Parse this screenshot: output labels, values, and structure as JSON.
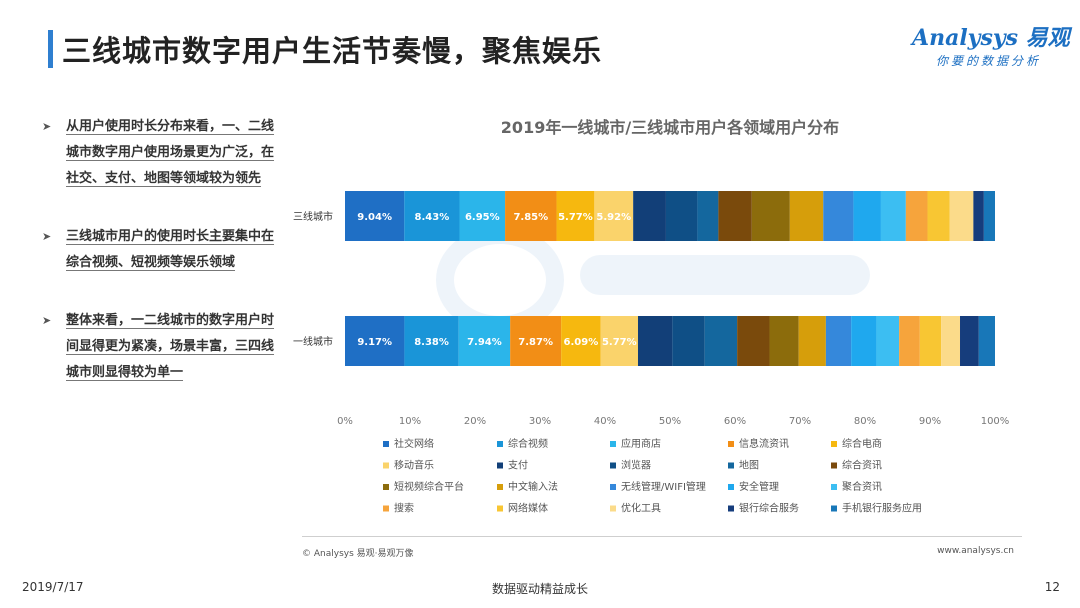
{
  "header": {
    "title": "三线城市数字用户生活节奏慢，聚焦娱乐"
  },
  "logo": {
    "brand": "Analysys 易观",
    "tagline": "你要的数据分析"
  },
  "bullets": [
    "从用户使用时长分布来看，一、二线城市数字用户使用场景更为广泛，在社交、支付、地图等领域较为领先",
    "三线城市用户的使用时长主要集中在综合视频、短视频等娱乐领域",
    "整体来看，一二线城市的数字用户时间显得更为紧凑，场景丰富，三四线城市则显得较为单一"
  ],
  "chart_data": {
    "type": "bar",
    "orientation": "horizontal",
    "stacked": "percent",
    "title": "2019年一线城市/三线城市用户各领域用户分布",
    "categories": [
      "三线城市",
      "一线城市"
    ],
    "xlim": [
      0,
      100
    ],
    "xticks": [
      "0%",
      "10%",
      "20%",
      "30%",
      "40%",
      "50%",
      "60%",
      "70%",
      "80%",
      "90%",
      "100%"
    ],
    "legend_position": "bottom",
    "series": [
      {
        "name": "社交网络",
        "color": "#1f6fc5",
        "values": [
          9.04,
          9.17
        ],
        "labels": [
          "9.04%",
          "9.17%"
        ]
      },
      {
        "name": "综合视频",
        "color": "#1a95d8",
        "values": [
          8.43,
          8.38
        ],
        "labels": [
          "8.43%",
          "8.38%"
        ]
      },
      {
        "name": "应用商店",
        "color": "#2bb5ea",
        "values": [
          6.95,
          7.94
        ],
        "labels": [
          "6.95%",
          "7.94%"
        ]
      },
      {
        "name": "信息流资讯",
        "color": "#f28e16",
        "values": [
          7.85,
          7.87
        ],
        "labels": [
          "7.85%",
          "7.87%"
        ]
      },
      {
        "name": "综合电商",
        "color": "#f6b80f",
        "values": [
          5.77,
          6.09
        ],
        "labels": [
          "5.77%",
          "6.09%"
        ]
      },
      {
        "name": "移动音乐",
        "color": "#fad36b",
        "values": [
          5.92,
          5.77
        ],
        "labels": [
          "5.92%",
          "5.77%"
        ]
      },
      {
        "name": "支付",
        "color": "#123f78",
        "values": [
          5.0,
          5.3
        ]
      },
      {
        "name": "浏览器",
        "color": "#0f4f86",
        "values": [
          4.8,
          5.0
        ]
      },
      {
        "name": "地图",
        "color": "#14679e",
        "values": [
          3.2,
          5.0
        ]
      },
      {
        "name": "综合资讯",
        "color": "#7a4a0c",
        "values": [
          5.1,
          5.0
        ]
      },
      {
        "name": "短视频综合平台",
        "color": "#8c6c0c",
        "values": [
          5.8,
          4.5
        ]
      },
      {
        "name": "中文输入法",
        "color": "#d69e0b",
        "values": [
          5.1,
          4.2
        ]
      },
      {
        "name": "无线管理/WIFI管理",
        "color": "#3588db",
        "values": [
          4.6,
          3.9
        ]
      },
      {
        "name": "安全管理",
        "color": "#1fa8ee",
        "values": [
          4.2,
          3.9
        ]
      },
      {
        "name": "聚合资讯",
        "color": "#3cbef2",
        "values": [
          3.8,
          3.5
        ]
      },
      {
        "name": "搜索",
        "color": "#f6a43c",
        "values": [
          3.3,
          3.2
        ]
      },
      {
        "name": "网络媒体",
        "color": "#f8c633",
        "values": [
          3.4,
          3.3
        ]
      },
      {
        "name": "优化工具",
        "color": "#fbdb8a",
        "values": [
          3.6,
          2.9
        ]
      },
      {
        "name": "银行综合服务",
        "color": "#163d7c",
        "values": [
          1.6,
          2.9
        ]
      },
      {
        "name": "手机银行服务应用",
        "color": "#1877b8",
        "values": [
          1.7,
          2.5
        ]
      }
    ]
  },
  "footer": {
    "copyright": "© Analysys 易观·易观万像",
    "site": "www.analysys.cn",
    "date": "2019/7/17",
    "slogan": "数据驱动精益成长",
    "page": "12"
  }
}
